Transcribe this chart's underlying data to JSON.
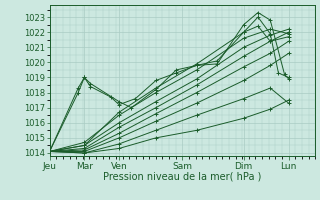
{
  "xlabel": "Pression niveau de la mer( hPa )",
  "bg_color": "#cce8e0",
  "grid_color": "#aaccc4",
  "line_color": "#1a5c2a",
  "ylim": [
    1013.8,
    1023.8
  ],
  "xlim": [
    0,
    6.5
  ],
  "yticks": [
    1014,
    1015,
    1016,
    1017,
    1018,
    1019,
    1020,
    1021,
    1022,
    1023
  ],
  "xtick_positions": [
    0.0,
    0.85,
    1.7,
    3.25,
    4.75,
    5.85
  ],
  "xtick_labels": [
    "Jeu",
    "Mar",
    "Ven",
    "Sam",
    "Dim",
    "Lun"
  ],
  "lines": [
    {
      "x": [
        0.0,
        0.7,
        0.85,
        1.0,
        1.7,
        2.0,
        2.6,
        3.1,
        3.6,
        4.1,
        4.75,
        5.1,
        5.4,
        5.75,
        5.85
      ],
      "y": [
        1014.1,
        1018.3,
        1019.0,
        1018.6,
        1017.4,
        1017.0,
        1018.2,
        1019.5,
        1019.8,
        1019.9,
        1022.5,
        1023.3,
        1022.8,
        1019.2,
        1018.9
      ]
    },
    {
      "x": [
        0.0,
        0.85,
        1.7,
        2.6,
        3.6,
        4.75,
        5.4,
        5.85
      ],
      "y": [
        1014.1,
        1014.7,
        1016.5,
        1018.0,
        1019.5,
        1021.6,
        1022.2,
        1021.9
      ]
    },
    {
      "x": [
        0.0,
        0.85,
        1.7,
        2.6,
        3.6,
        4.75,
        5.4,
        5.85
      ],
      "y": [
        1014.1,
        1014.5,
        1016.0,
        1017.4,
        1018.9,
        1021.0,
        1021.8,
        1022.2
      ]
    },
    {
      "x": [
        0.0,
        0.85,
        1.7,
        2.6,
        3.6,
        4.75,
        5.4,
        5.85
      ],
      "y": [
        1014.1,
        1014.3,
        1015.7,
        1017.0,
        1018.5,
        1020.4,
        1021.4,
        1022.0
      ]
    },
    {
      "x": [
        0.0,
        0.85,
        1.7,
        2.6,
        3.6,
        4.75,
        5.4,
        5.85
      ],
      "y": [
        1014.1,
        1014.2,
        1015.3,
        1016.6,
        1018.0,
        1019.7,
        1020.6,
        1021.4
      ]
    },
    {
      "x": [
        0.0,
        0.85,
        1.7,
        2.6,
        3.6,
        4.75,
        5.4,
        5.85
      ],
      "y": [
        1014.1,
        1014.1,
        1015.0,
        1016.1,
        1017.3,
        1018.8,
        1019.8,
        1020.6
      ]
    },
    {
      "x": [
        0.0,
        0.85,
        1.7,
        2.6,
        3.6,
        4.75,
        5.4,
        5.85
      ],
      "y": [
        1014.1,
        1014.0,
        1014.6,
        1015.5,
        1016.5,
        1017.6,
        1018.3,
        1017.3
      ]
    },
    {
      "x": [
        0.0,
        0.85,
        1.7,
        2.6,
        3.6,
        4.75,
        5.4,
        5.85
      ],
      "y": [
        1014.1,
        1014.0,
        1014.3,
        1015.0,
        1015.5,
        1016.3,
        1016.9,
        1017.5
      ]
    },
    {
      "x": [
        0.0,
        0.7,
        0.85,
        1.0,
        1.5,
        1.7,
        2.1,
        2.6,
        3.1,
        3.6,
        4.1,
        4.75,
        5.1,
        5.4,
        5.6,
        5.85
      ],
      "y": [
        1014.1,
        1018.0,
        1019.0,
        1018.4,
        1017.7,
        1017.2,
        1017.6,
        1018.8,
        1019.3,
        1019.8,
        1020.1,
        1022.0,
        1023.0,
        1021.9,
        1019.3,
        1019.0
      ]
    },
    {
      "x": [
        0.0,
        0.85,
        1.7,
        2.6,
        3.6,
        4.75,
        5.1,
        5.4,
        5.85
      ],
      "y": [
        1014.1,
        1014.5,
        1016.7,
        1018.3,
        1019.9,
        1022.0,
        1022.4,
        1021.4,
        1021.7
      ]
    }
  ]
}
